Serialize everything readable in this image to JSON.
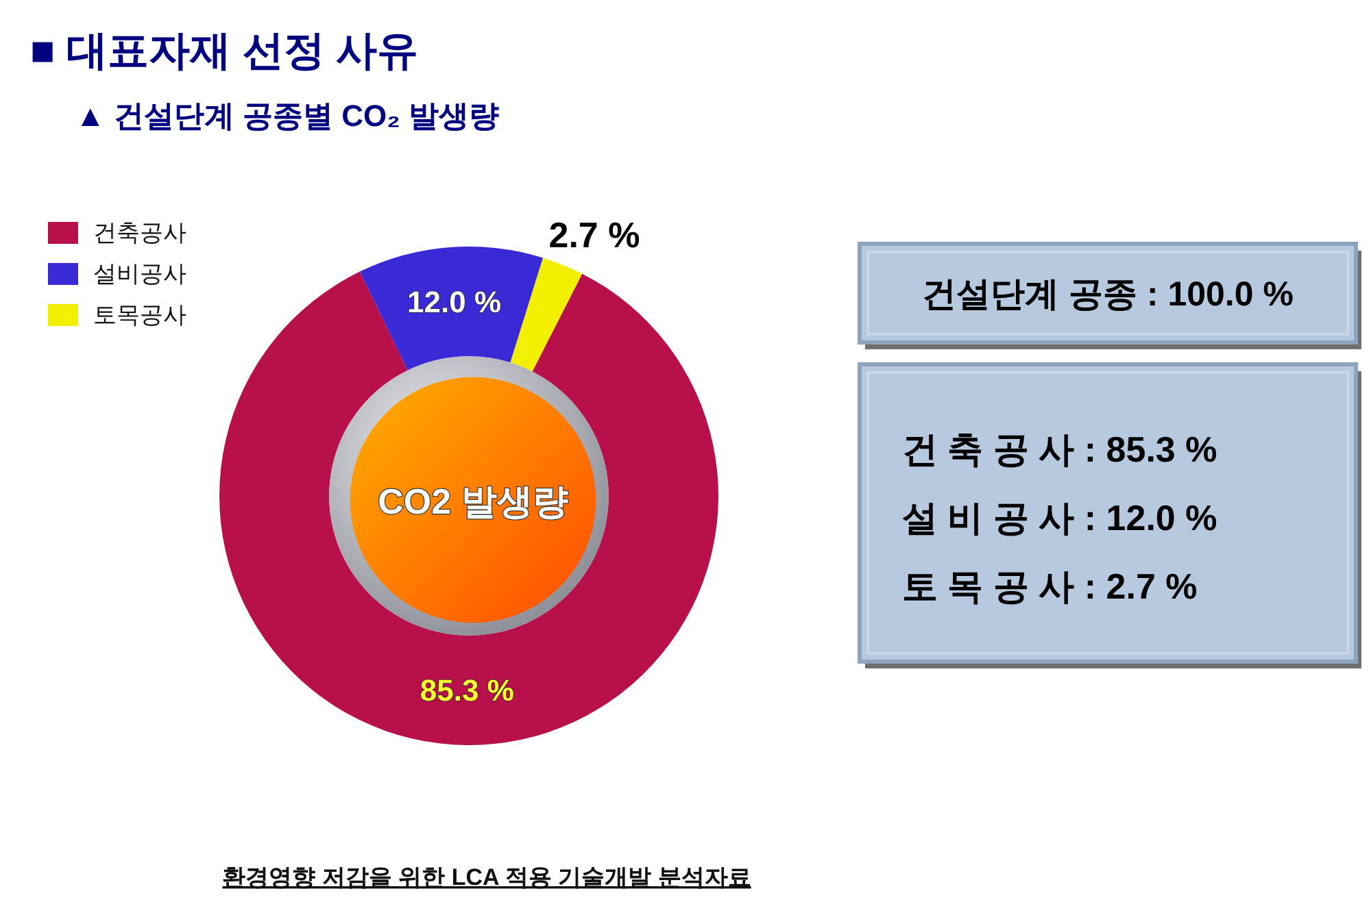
{
  "chart_data": [
    {
      "type": "donut",
      "title": "■ 대표자재 선정 사유",
      "subtitle": "▲ 건설단계 공종별 CO₂ 발생량",
      "categories": [
        "건축공사",
        "설비공사",
        "토목공사"
      ],
      "values": [
        85.3,
        12.0,
        2.7
      ],
      "colors": [
        "#b8104a",
        "#3a2ad6",
        "#f2f000"
      ],
      "value_labels": [
        "85.3 %",
        "12.0 %",
        "2.7 %"
      ],
      "legend": "top left",
      "annotations": [
        "CO2 발생량",
        "환경영향 저감을 위한 LCA 적용 기술개발 분석자료"
      ]
    },
    {
      "type": "other",
      "title": "건설단계 공종 : 100.0 %",
      "annotations": [
        "건 축 공 사 : 85.3 %",
        "설 비 공 사 : 12.0 %",
        "토 목 공 사 : 2.7 %"
      ]
    }
  ]
}
